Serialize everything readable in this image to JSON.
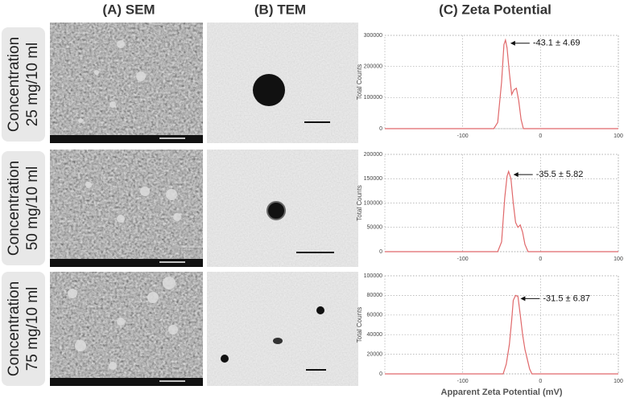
{
  "columns": [
    "(A) SEM",
    "(B) TEM",
    "(C) Zeta Potential"
  ],
  "rows": [
    {
      "label": [
        "Concentration",
        "25 mg/10 ml"
      ]
    },
    {
      "label": [
        "Concentration",
        "50 mg/10 ml"
      ]
    },
    {
      "label": [
        "Concentration",
        "75 mg/10 ml"
      ]
    }
  ],
  "chart_data": [
    {
      "type": "line",
      "ylabel": "Total Counts",
      "annotation": "-43.1 ± 4.69",
      "x": [
        -200,
        -60,
        -55,
        -50,
        -47,
        -45,
        -43,
        -40,
        -37,
        -34,
        -31,
        -28,
        -25,
        -22,
        100
      ],
      "series": [
        {
          "color": "#e0686a",
          "values": [
            0,
            0,
            20000,
            150000,
            270000,
            285000,
            260000,
            180000,
            110000,
            125000,
            130000,
            90000,
            30000,
            0,
            0
          ]
        }
      ],
      "xlim": [
        -200,
        100
      ],
      "xticks": [
        -100,
        0,
        100
      ],
      "ylim": [
        0,
        300000
      ],
      "yticks": [
        0,
        100000,
        200000,
        300000
      ],
      "grid": true
    },
    {
      "type": "line",
      "ylabel": "Total Counts",
      "annotation": "-35.5 ± 5.82",
      "x": [
        -200,
        -55,
        -50,
        -46,
        -43,
        -41,
        -38,
        -35,
        -32,
        -29,
        -26,
        -23,
        -20,
        -16,
        100
      ],
      "series": [
        {
          "color": "#e0686a",
          "values": [
            0,
            0,
            20000,
            110000,
            155000,
            165000,
            150000,
            100000,
            60000,
            50000,
            55000,
            40000,
            15000,
            0,
            0
          ]
        }
      ],
      "xlim": [
        -200,
        100
      ],
      "xticks": [
        -100,
        0,
        100
      ],
      "ylim": [
        0,
        200000
      ],
      "yticks": [
        0,
        50000,
        100000,
        150000,
        200000
      ],
      "grid": true
    },
    {
      "type": "line",
      "ylabel": "Total Counts",
      "annotation": "-31.5 ± 6.87",
      "xlabel": "Apparent Zeta Potential (mV)",
      "x": [
        -200,
        -48,
        -44,
        -40,
        -37,
        -35,
        -32,
        -29,
        -26,
        -23,
        -20,
        -17,
        -14,
        -11,
        100
      ],
      "series": [
        {
          "color": "#e0686a",
          "values": [
            0,
            0,
            10000,
            30000,
            55000,
            75000,
            80000,
            79000,
            60000,
            40000,
            25000,
            15000,
            5000,
            0,
            0
          ]
        }
      ],
      "xlim": [
        -200,
        100
      ],
      "xticks": [
        -100,
        0,
        100
      ],
      "ylim": [
        0,
        100000
      ],
      "yticks": [
        0,
        20000,
        40000,
        60000,
        80000,
        100000
      ],
      "grid": true
    }
  ]
}
